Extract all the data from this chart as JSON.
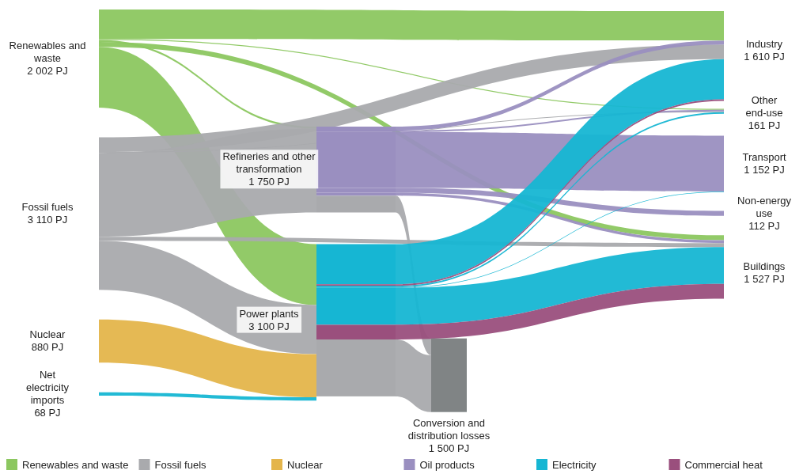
{
  "chart_data": {
    "type": "other",
    "legend": "bottom",
    "categories": [
      "Renewables and waste",
      "Fossil fuels",
      "Nuclear",
      "Net electricity imports",
      "Refineries and other transformation",
      "Power plants",
      "Conversion and distribution losses",
      "Industry",
      "Other end-use",
      "Transport",
      "Non-energy use",
      "Buildings"
    ],
    "values": [
      2002,
      3110,
      880,
      68,
      1750,
      3100,
      1500,
      1610,
      161,
      1152,
      112,
      1527
    ],
    "value_labels": [
      "2 002 PJ",
      "3 110 PJ",
      "880 PJ",
      "68 PJ",
      "1 750 PJ",
      "3 100 PJ",
      "1 500 PJ",
      "1 610 PJ",
      "161 PJ",
      "1 152 PJ",
      "112 PJ",
      "1 527 PJ"
    ],
    "series": [
      {
        "name": "Renewables and waste",
        "color": "#8cc760",
        "values": [
          null,
          null,
          null,
          null,
          null,
          null,
          null,
          null,
          null,
          null,
          null,
          null
        ]
      },
      {
        "name": "Fossil fuels",
        "color": "#a9aaad",
        "values": [
          null,
          null,
          null,
          null,
          null,
          null,
          null,
          null,
          null,
          null,
          null,
          null
        ]
      },
      {
        "name": "Nuclear",
        "color": "#e4b54b",
        "values": [
          null,
          null,
          null,
          null,
          null,
          null,
          null,
          null,
          null,
          null,
          null,
          null
        ]
      },
      {
        "name": "Oil products",
        "color": "#9a8fc0",
        "values": [
          null,
          null,
          null,
          null,
          null,
          null,
          null,
          null,
          null,
          null,
          null,
          null
        ]
      },
      {
        "name": "Electricity",
        "color": "#16b6d3",
        "values": [
          null,
          null,
          null,
          null,
          null,
          null,
          null,
          null,
          null,
          null,
          null,
          null
        ]
      },
      {
        "name": "Commercial heat",
        "color": "#9a4f7d",
        "values": [
          null,
          null,
          null,
          null,
          null,
          null,
          null,
          null,
          null,
          null,
          null,
          null
        ]
      }
    ]
  }
}
